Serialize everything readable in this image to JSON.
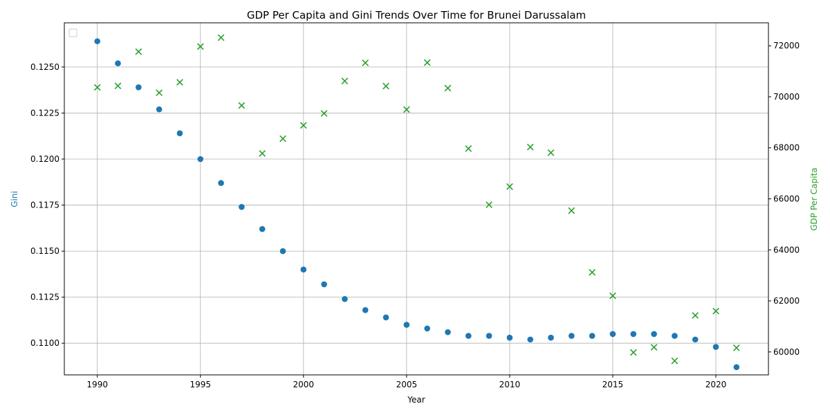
{
  "chart_data": {
    "type": "scatter",
    "title": "GDP Per Capita and Gini Trends Over Time for Brunei Darussalam",
    "xlabel": "Year",
    "ylabel_left": "Gini",
    "ylabel_right": "GDP Per Capita",
    "xlim": [
      1988.4,
      2022.55
    ],
    "ylim_left": [
      0.10828,
      0.1274
    ],
    "ylim_right": [
      59100,
      72900
    ],
    "x_ticks": [
      1990,
      1995,
      2000,
      2005,
      2010,
      2015,
      2020
    ],
    "y_ticks_left": [
      0.11,
      0.1125,
      0.115,
      0.1175,
      0.12,
      0.1225,
      0.125
    ],
    "y_ticks_right": [
      60000,
      62000,
      64000,
      66000,
      68000,
      70000,
      72000
    ],
    "grid": true,
    "legend": "top-left (empty)",
    "x": [
      1990,
      1991,
      1992,
      1993,
      1994,
      1995,
      1996,
      1997,
      1998,
      1999,
      2000,
      2001,
      2002,
      2003,
      2004,
      2005,
      2006,
      2007,
      2008,
      2009,
      2010,
      2011,
      2012,
      2013,
      2014,
      2015,
      2016,
      2017,
      2018,
      2019,
      2020,
      2021
    ],
    "series": [
      {
        "axis": "left",
        "marker": "circle",
        "color": "#1f77b4",
        "values": [
          0.1264,
          0.1252,
          0.1239,
          0.1227,
          0.1214,
          0.12,
          0.1187,
          0.1174,
          0.1162,
          0.115,
          0.114,
          0.1132,
          0.1124,
          0.1118,
          0.1114,
          0.111,
          0.1108,
          0.1106,
          0.1104,
          0.1104,
          0.1103,
          0.1102,
          0.1103,
          0.1104,
          0.1104,
          0.1105,
          0.1105,
          0.1105,
          0.1104,
          0.1102,
          0.1098,
          0.1087
        ]
      },
      {
        "axis": "right",
        "marker": "x",
        "color": "#2ca02c",
        "values": [
          70370,
          70430,
          71770,
          70160,
          70570,
          71970,
          72320,
          69660,
          67780,
          68360,
          68880,
          69350,
          70620,
          71330,
          70420,
          69500,
          71340,
          70340,
          67970,
          65770,
          66480,
          68030,
          67810,
          65540,
          63120,
          62200,
          59980,
          60180,
          59650,
          61430,
          61600,
          60160
        ]
      }
    ]
  }
}
